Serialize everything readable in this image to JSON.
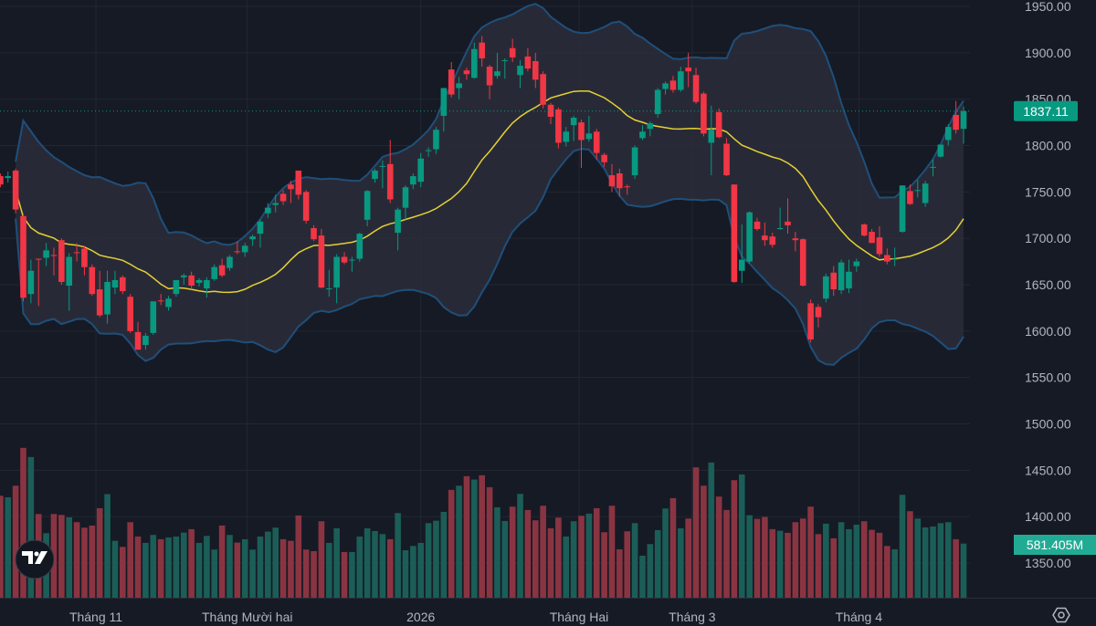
{
  "chart_data": {
    "type": "candlestick",
    "title": "",
    "price_axis": {
      "ylim": [
        1325,
        1957
      ],
      "ticks": [
        "1950.00",
        "1900.00",
        "1850.00",
        "1800.00",
        "1750.00",
        "1700.00",
        "1650.00",
        "1600.00",
        "1550.00",
        "1500.00",
        "1450.00",
        "1400.00",
        "1350.00"
      ]
    },
    "time_axis": {
      "ticks": [
        {
          "label": "Tháng 11",
          "bar": 12.5
        },
        {
          "label": "Tháng Mười hai",
          "bar": 32.3
        },
        {
          "label": "2026",
          "bar": 55
        },
        {
          "label": "Tháng Hai",
          "bar": 75.7
        },
        {
          "label": "Tháng 3",
          "bar": 90.5
        },
        {
          "label": "Tháng 4",
          "bar": 112.3
        }
      ]
    },
    "grid": true,
    "last_price": "1837.11",
    "last_volume": "581.405M",
    "indicators": {
      "bollinger_period": 20,
      "bollinger_stddev": 2
    },
    "ohlc": [
      [
        1767,
        1770,
        1755,
        1758
      ],
      [
        1765,
        1772,
        1760,
        1767
      ],
      [
        1773,
        1775,
        1727,
        1731
      ],
      [
        1724,
        1727,
        1632,
        1636
      ],
      [
        1640,
        1677,
        1630,
        1665
      ],
      [
        1678,
        1678,
        1627,
        1677
      ],
      [
        1679,
        1695,
        1670,
        1687
      ],
      [
        1682,
        1690,
        1660,
        1681
      ],
      [
        1698,
        1700,
        1650,
        1653
      ],
      [
        1649,
        1684,
        1622,
        1680
      ],
      [
        1685,
        1695,
        1675,
        1684
      ],
      [
        1689,
        1692,
        1660,
        1669
      ],
      [
        1669,
        1672,
        1638,
        1640
      ],
      [
        1645,
        1665,
        1615,
        1617
      ],
      [
        1618,
        1665,
        1608,
        1653
      ],
      [
        1647,
        1665,
        1640,
        1655
      ],
      [
        1658,
        1660,
        1640,
        1643
      ],
      [
        1637,
        1640,
        1598,
        1600
      ],
      [
        1599,
        1610,
        1580,
        1580
      ],
      [
        1585,
        1598,
        1580,
        1595
      ],
      [
        1598,
        1632,
        1596,
        1632
      ],
      [
        1633,
        1640,
        1628,
        1632
      ],
      [
        1626,
        1638,
        1622,
        1635
      ],
      [
        1640,
        1655,
        1637,
        1655
      ],
      [
        1658,
        1662,
        1650,
        1660
      ],
      [
        1660,
        1664,
        1645,
        1649
      ],
      [
        1652,
        1657,
        1648,
        1655
      ],
      [
        1646,
        1658,
        1636,
        1655
      ],
      [
        1656,
        1672,
        1654,
        1669
      ],
      [
        1671,
        1678,
        1658,
        1660
      ],
      [
        1668,
        1682,
        1665,
        1680
      ],
      [
        1686,
        1697,
        1683,
        1685
      ],
      [
        1685,
        1695,
        1680,
        1692
      ],
      [
        1699,
        1704,
        1692,
        1702
      ],
      [
        1705,
        1720,
        1690,
        1718
      ],
      [
        1727,
        1738,
        1722,
        1733
      ],
      [
        1736,
        1747,
        1728,
        1738
      ],
      [
        1748,
        1752,
        1736,
        1740
      ],
      [
        1758,
        1762,
        1738,
        1753
      ],
      [
        1773,
        1773,
        1742,
        1747
      ],
      [
        1750,
        1752,
        1716,
        1719
      ],
      [
        1711,
        1714,
        1697,
        1699
      ],
      [
        1703,
        1710,
        1646,
        1647
      ],
      [
        1646,
        1666,
        1637,
        1646
      ],
      [
        1647,
        1683,
        1630,
        1680
      ],
      [
        1680,
        1685,
        1672,
        1674
      ],
      [
        1676,
        1680,
        1664,
        1677
      ],
      [
        1678,
        1706,
        1675,
        1705
      ],
      [
        1720,
        1752,
        1713,
        1751
      ],
      [
        1764,
        1775,
        1760,
        1773
      ],
      [
        1778,
        1784,
        1754,
        1778
      ],
      [
        1780,
        1806,
        1738,
        1742
      ],
      [
        1706,
        1733,
        1687,
        1731
      ],
      [
        1733,
        1757,
        1720,
        1755
      ],
      [
        1758,
        1770,
        1753,
        1767
      ],
      [
        1761,
        1792,
        1755,
        1786
      ],
      [
        1794,
        1798,
        1788,
        1795
      ],
      [
        1796,
        1820,
        1791,
        1817
      ],
      [
        1832,
        1862,
        1815,
        1862
      ],
      [
        1882,
        1890,
        1852,
        1855
      ],
      [
        1862,
        1874,
        1850,
        1867
      ],
      [
        1881,
        1884,
        1871,
        1877
      ],
      [
        1873,
        1911,
        1872,
        1904
      ],
      [
        1911,
        1918,
        1885,
        1894
      ],
      [
        1885,
        1887,
        1850,
        1865
      ],
      [
        1875,
        1900,
        1872,
        1880
      ],
      [
        1892,
        1894,
        1872,
        1892
      ],
      [
        1905,
        1915,
        1890,
        1895
      ],
      [
        1876,
        1892,
        1862,
        1886
      ],
      [
        1896,
        1905,
        1880,
        1883
      ],
      [
        1891,
        1900,
        1862,
        1871
      ],
      [
        1877,
        1880,
        1840,
        1844
      ],
      [
        1844,
        1846,
        1823,
        1831
      ],
      [
        1839,
        1841,
        1797,
        1803
      ],
      [
        1804,
        1820,
        1799,
        1815
      ],
      [
        1822,
        1832,
        1805,
        1830
      ],
      [
        1825,
        1828,
        1776,
        1806
      ],
      [
        1807,
        1832,
        1804,
        1813
      ],
      [
        1815,
        1818,
        1785,
        1792
      ],
      [
        1790,
        1792,
        1777,
        1782
      ],
      [
        1768,
        1780,
        1750,
        1756
      ],
      [
        1770,
        1775,
        1745,
        1754
      ],
      [
        1756,
        1758,
        1747,
        1755
      ],
      [
        1768,
        1800,
        1764,
        1798
      ],
      [
        1808,
        1822,
        1806,
        1815
      ],
      [
        1818,
        1826,
        1810,
        1824
      ],
      [
        1834,
        1862,
        1830,
        1860
      ],
      [
        1861,
        1869,
        1855,
        1867
      ],
      [
        1870,
        1875,
        1857,
        1860
      ],
      [
        1860,
        1885,
        1858,
        1880
      ],
      [
        1884,
        1900,
        1863,
        1880
      ],
      [
        1876,
        1884,
        1845,
        1847
      ],
      [
        1856,
        1858,
        1810,
        1813
      ],
      [
        1803,
        1843,
        1768,
        1817
      ],
      [
        1836,
        1840,
        1808,
        1809
      ],
      [
        1802,
        1808,
        1767,
        1768
      ],
      [
        1758,
        1758,
        1652,
        1653
      ],
      [
        1665,
        1715,
        1652,
        1677
      ],
      [
        1675,
        1729,
        1673,
        1728
      ],
      [
        1718,
        1722,
        1708,
        1710
      ],
      [
        1703,
        1717,
        1692,
        1698
      ],
      [
        1702,
        1706,
        1690,
        1693
      ],
      [
        1711,
        1733,
        1709,
        1711
      ],
      [
        1718,
        1743,
        1705,
        1714
      ],
      [
        1700,
        1707,
        1686,
        1698
      ],
      [
        1699,
        1700,
        1648,
        1649
      ],
      [
        1630,
        1634,
        1588,
        1591
      ],
      [
        1626,
        1629,
        1604,
        1615
      ],
      [
        1635,
        1662,
        1631,
        1659
      ],
      [
        1663,
        1670,
        1638,
        1645
      ],
      [
        1644,
        1677,
        1640,
        1674
      ],
      [
        1646,
        1677,
        1641,
        1664
      ],
      [
        1670,
        1678,
        1664,
        1675
      ],
      [
        1715,
        1716,
        1702,
        1703
      ],
      [
        1707,
        1710,
        1695,
        1695
      ],
      [
        1701,
        1713,
        1680,
        1683
      ],
      [
        1682,
        1689,
        1672,
        1675
      ],
      [
        1678,
        1690,
        1670,
        1678
      ],
      [
        1707,
        1757,
        1706,
        1757
      ],
      [
        1751,
        1758,
        1736,
        1737
      ],
      [
        1752,
        1763,
        1744,
        1752
      ],
      [
        1738,
        1762,
        1734,
        1759
      ],
      [
        1777,
        1785,
        1767,
        1777
      ],
      [
        1788,
        1801,
        1787,
        1801
      ],
      [
        1806,
        1823,
        1800,
        1820
      ],
      [
        1833,
        1848,
        1813,
        1817
      ],
      [
        1818,
        1842,
        1802,
        1837.11
      ]
    ],
    "volume_millions": [
      1095,
      1079,
      1203,
      1609,
      1511,
      899,
      693,
      899,
      889,
      863,
      811,
      752,
      775,
      961,
      1112,
      611,
      546,
      811,
      657,
      589,
      674,
      628,
      647,
      657,
      700,
      736,
      589,
      664,
      517,
      775,
      674,
      592,
      628,
      517,
      657,
      710,
      752,
      628,
      611,
      883,
      517,
      500,
      821,
      589,
      746,
      491,
      491,
      657,
      746,
      716,
      683,
      628,
      909,
      510,
      556,
      589,
      801,
      827,
      922,
      1158,
      1203,
      1305,
      1269,
      1315,
      1187,
      971,
      824,
      978,
      1115,
      942,
      831,
      988,
      746,
      860,
      657,
      821,
      880,
      903,
      961,
      703,
      988,
      520,
      713,
      801,
      451,
      576,
      726,
      958,
      1069,
      746,
      850,
      1400,
      1203,
      1452,
      1086,
      942,
      1262,
      1324,
      886,
      847,
      867,
      736,
      719,
      697,
      811,
      850,
      978,
      683,
      795,
      638,
      811,
      736,
      785,
      821,
      729,
      697,
      556,
      520,
      1105,
      929,
      850,
      755,
      765,
      801,
      811,
      628,
      581.405
    ]
  },
  "colors": {
    "background": "#161a25",
    "up": "#089981",
    "down": "#f23645",
    "volume_up": "#1b5e57",
    "volume_down": "#8a3442",
    "bollinger_band": "#1f4f7a",
    "bollinger_fill": "#2a2e39",
    "bollinger_basis": "#e5d035",
    "grid": "#232733"
  },
  "icons": {
    "logo": "tradingview-logo-icon",
    "settings": "settings-icon"
  }
}
